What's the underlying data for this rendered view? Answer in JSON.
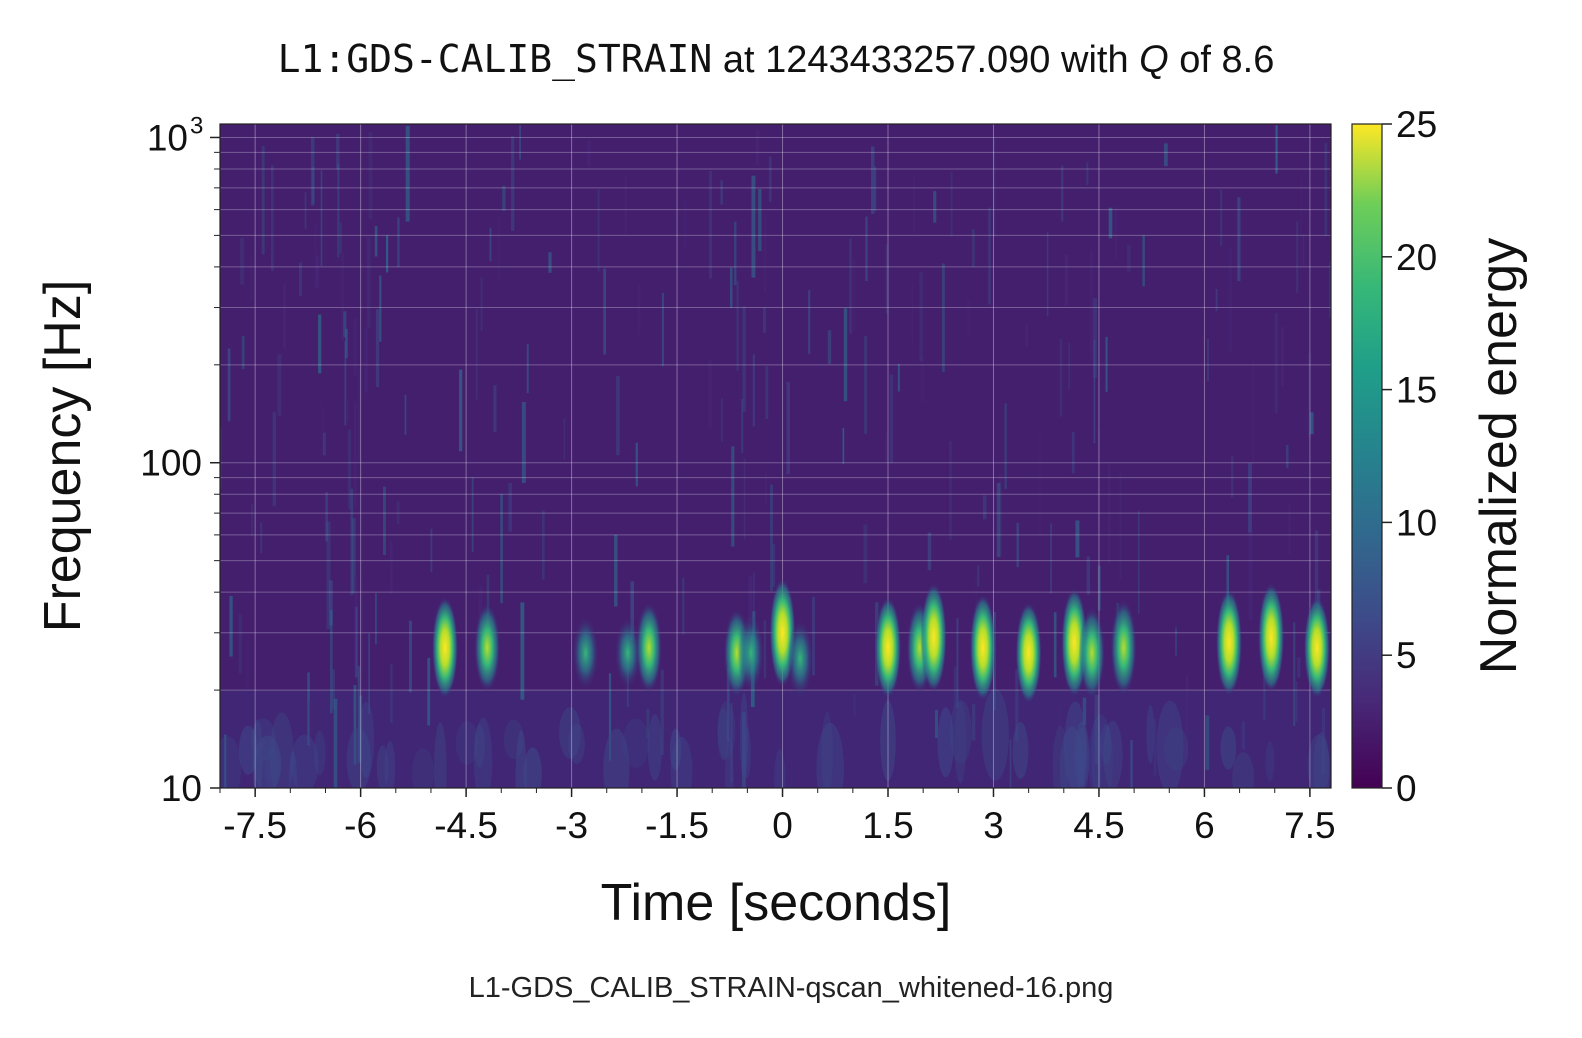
{
  "chart_data": {
    "type": "heatmap",
    "title": {
      "channel": "L1:GDS-CALIB_STRAIN",
      "at_text": "at",
      "gps_time": "1243433257.090",
      "with_text": "with",
      "q_symbol": "Q",
      "of_text": "of",
      "q_value": "8.6"
    },
    "xlabel": "Time [seconds]",
    "ylabel": "Frequency [Hz]",
    "colorbar_label": "Normalized energy",
    "xlim": [
      -8.0,
      7.8
    ],
    "ylim": [
      10,
      1100
    ],
    "yscale": "log",
    "colorbar_range": [
      0,
      25
    ],
    "x_ticks": [
      {
        "value": -7.5,
        "label": "-7.5"
      },
      {
        "value": -6,
        "label": "-6"
      },
      {
        "value": -4.5,
        "label": "-4.5"
      },
      {
        "value": -3,
        "label": "-3"
      },
      {
        "value": -1.5,
        "label": "-1.5"
      },
      {
        "value": 0,
        "label": "0"
      },
      {
        "value": 1.5,
        "label": "1.5"
      },
      {
        "value": 3,
        "label": "3"
      },
      {
        "value": 4.5,
        "label": "4.5"
      },
      {
        "value": 6,
        "label": "6"
      },
      {
        "value": 7.5,
        "label": "7.5"
      }
    ],
    "y_ticks": [
      {
        "value": 10,
        "label": "10"
      },
      {
        "value": 100,
        "label": "100"
      },
      {
        "value": 1000,
        "label": "10",
        "sup": "3"
      }
    ],
    "colorbar_ticks": [
      {
        "value": 0,
        "label": "0"
      },
      {
        "value": 5,
        "label": "5"
      },
      {
        "value": 10,
        "label": "10"
      },
      {
        "value": 15,
        "label": "15"
      },
      {
        "value": 20,
        "label": "20"
      },
      {
        "value": 25,
        "label": "25"
      }
    ],
    "grid": true,
    "events": [
      {
        "t": -4.8,
        "f": 27,
        "energy": 22
      },
      {
        "t": -4.2,
        "f": 27,
        "energy": 17
      },
      {
        "t": -2.8,
        "f": 26,
        "energy": 11
      },
      {
        "t": -2.2,
        "f": 26,
        "energy": 10
      },
      {
        "t": -1.9,
        "f": 27,
        "energy": 18
      },
      {
        "t": -0.65,
        "f": 26,
        "energy": 17
      },
      {
        "t": -0.45,
        "f": 26,
        "energy": 13
      },
      {
        "t": 0.0,
        "f": 30,
        "energy": 25
      },
      {
        "t": 0.25,
        "f": 25,
        "energy": 13
      },
      {
        "t": 1.5,
        "f": 27,
        "energy": 22
      },
      {
        "t": 1.95,
        "f": 27,
        "energy": 18
      },
      {
        "t": 2.15,
        "f": 29,
        "energy": 25
      },
      {
        "t": 2.85,
        "f": 27,
        "energy": 24
      },
      {
        "t": 3.5,
        "f": 26,
        "energy": 22
      },
      {
        "t": 4.15,
        "f": 28,
        "energy": 25
      },
      {
        "t": 4.4,
        "f": 26,
        "energy": 18
      },
      {
        "t": 4.85,
        "f": 27,
        "energy": 20
      },
      {
        "t": 6.35,
        "f": 28,
        "energy": 24
      },
      {
        "t": 6.95,
        "f": 29,
        "energy": 25
      },
      {
        "t": 7.6,
        "f": 27,
        "energy": 22
      }
    ]
  },
  "caption": "L1-GDS_CALIB_STRAIN-qscan_whitened-16.png"
}
